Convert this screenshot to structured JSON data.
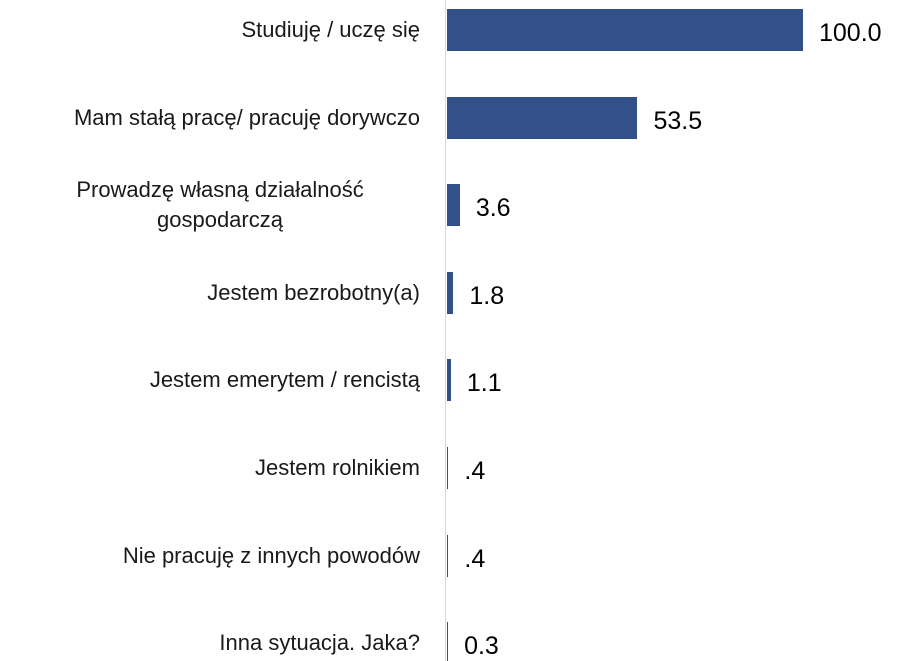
{
  "chart_data": {
    "type": "bar",
    "orientation": "horizontal",
    "categories": [
      "Studiuję / uczę się",
      "Mam stałą pracę/ pracuję dorywczo",
      "Prowadzę własną działalność gospodarczą",
      "Jestem bezrobotny(a)",
      "Jestem emerytem / rencistą",
      "Jestem rolnikiem",
      "Nie pracuję z innych powodów",
      "Inna sytuacja. Jaka?"
    ],
    "values": [
      100.0,
      53.5,
      3.6,
      1.8,
      1.1,
      0.4,
      0.4,
      0.3
    ],
    "value_labels": [
      "100.0",
      "53.5",
      "3.6",
      "1.8",
      "1.1",
      ".4",
      ".4",
      "0.3"
    ],
    "color": "#32508a"
  }
}
